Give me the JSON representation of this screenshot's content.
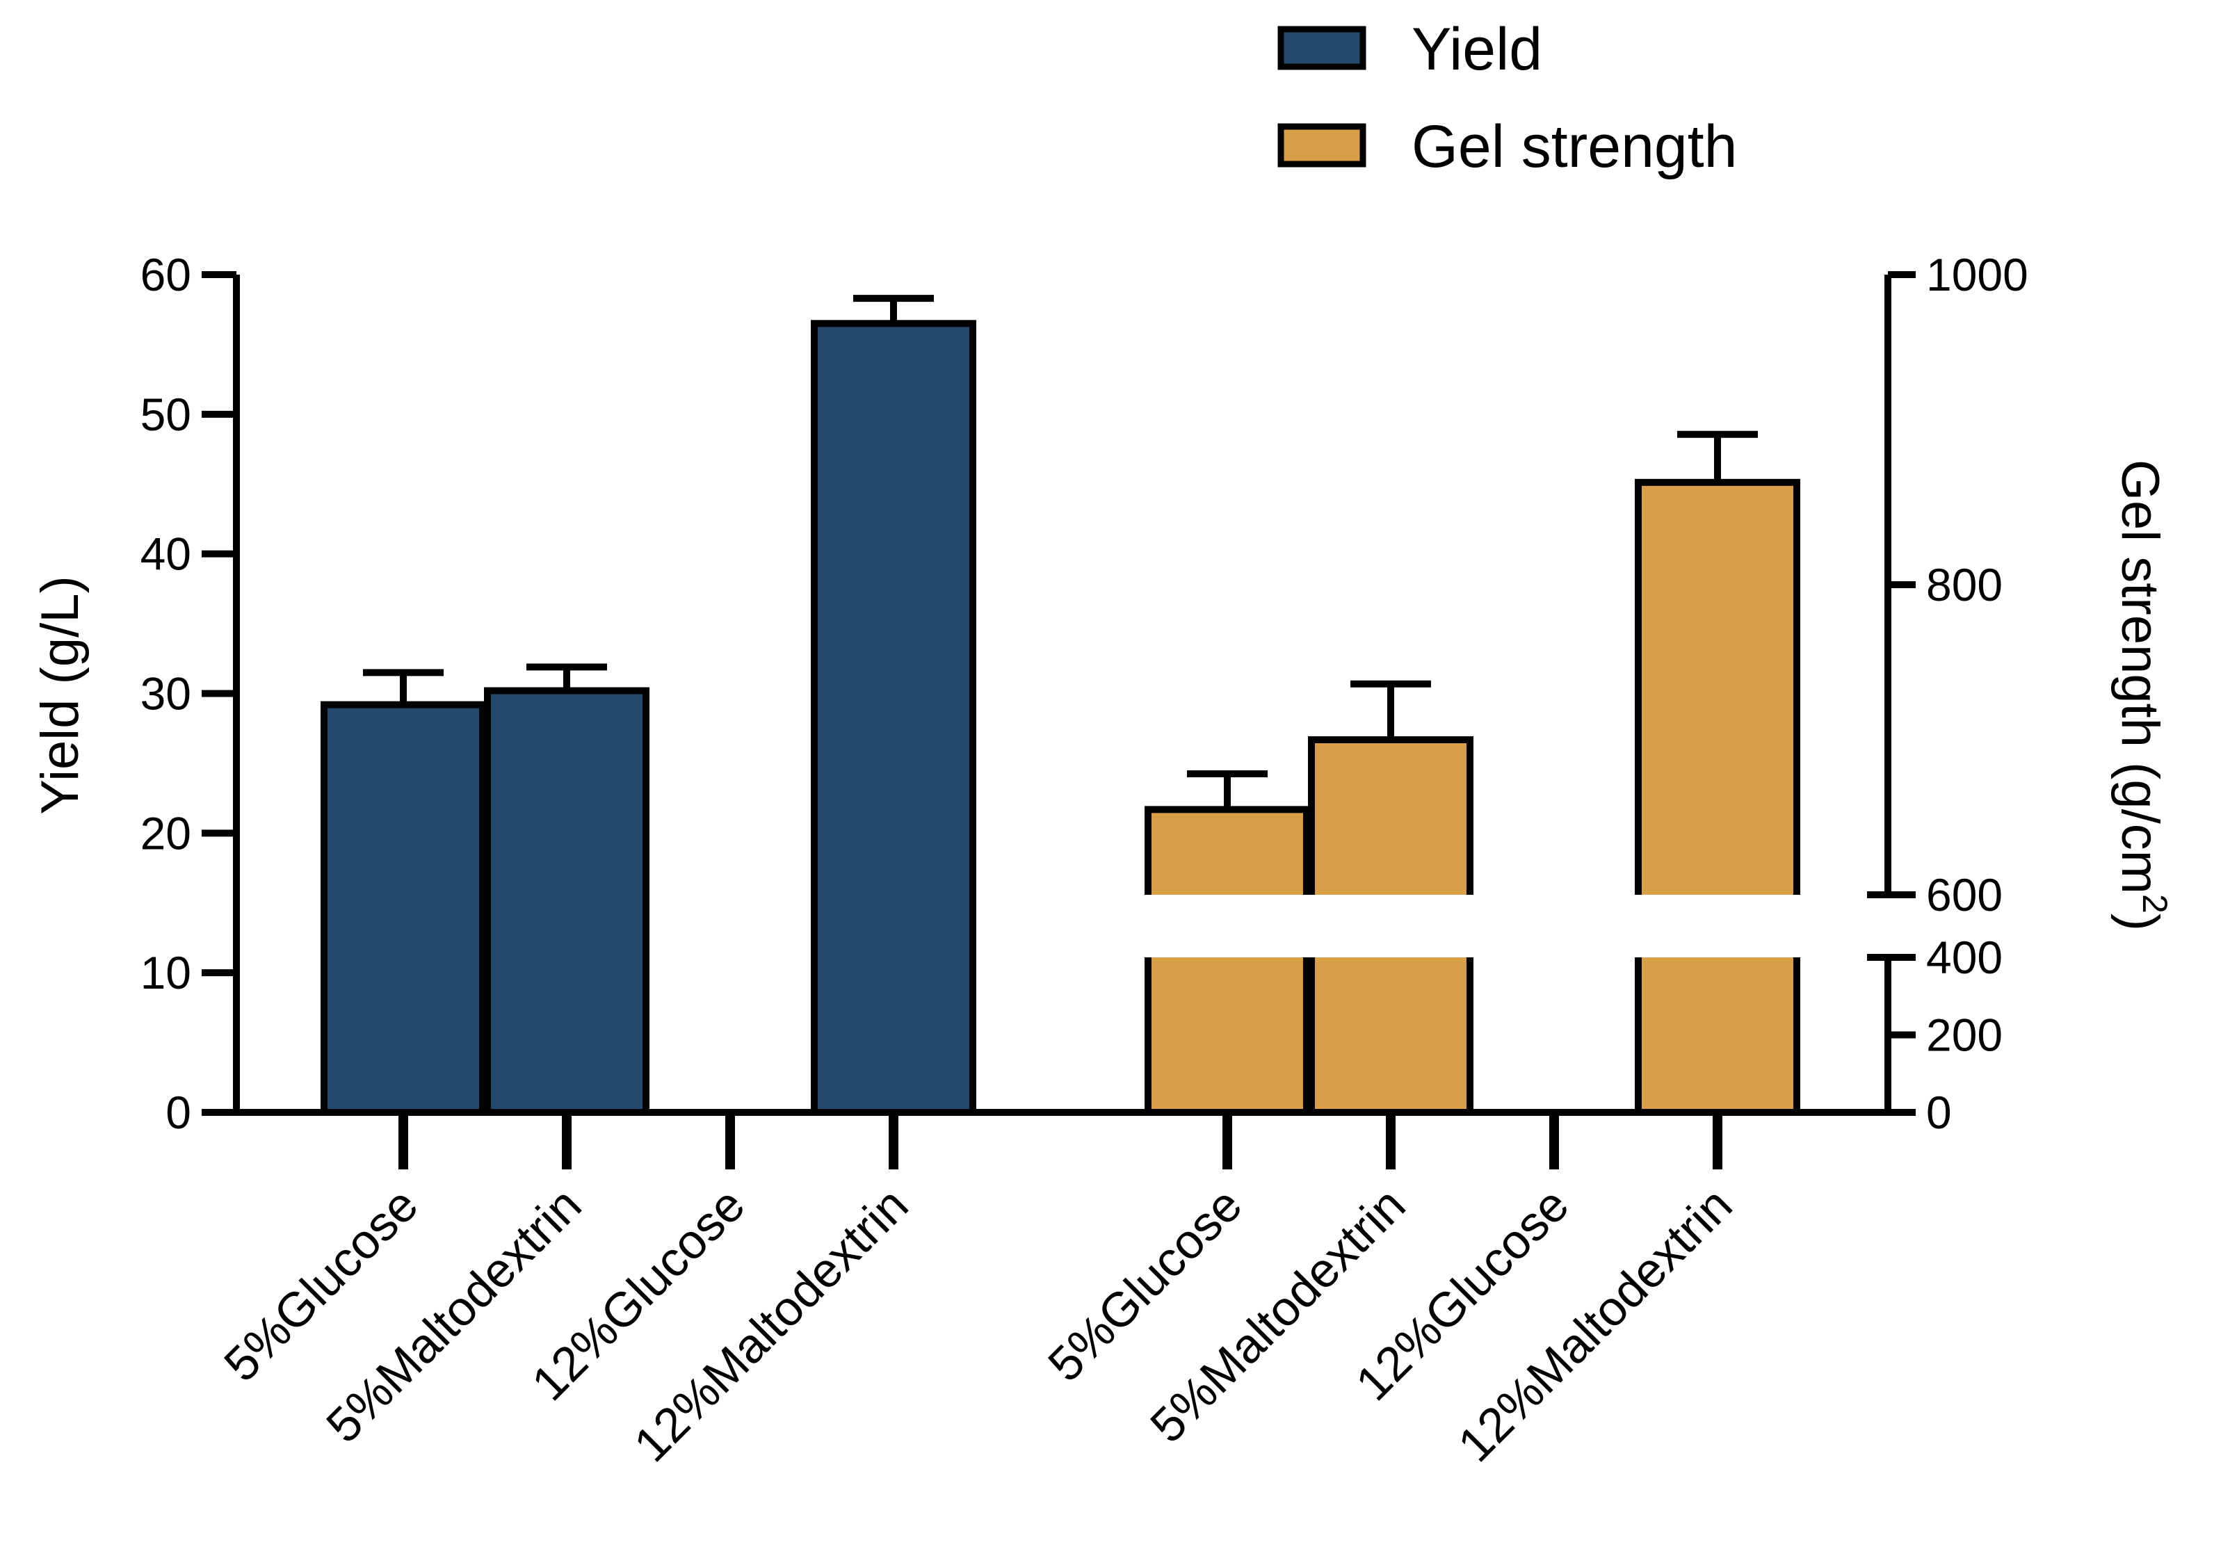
{
  "chart_data": {
    "type": "bar",
    "title": "",
    "legend": {
      "placement": "top-right",
      "entries": [
        {
          "name": "Yield",
          "color": "#254A6B"
        },
        {
          "name": "Gel strength",
          "color": "#D89E48"
        }
      ]
    },
    "left_axis": {
      "label": "Yield (g/L)",
      "ylim": [
        0,
        60
      ],
      "ticks": [
        "0",
        "10",
        "20",
        "30",
        "40",
        "50",
        "60"
      ]
    },
    "right_axis": {
      "label_main": "Gel strength (g/cm",
      "label_sup": "2",
      "label_end": ")",
      "broken": true,
      "lower_range": [
        0,
        400
      ],
      "upper_range": [
        600,
        1000
      ],
      "lower_ticks": [
        "0",
        "200",
        "400"
      ],
      "upper_ticks": [
        "600",
        "800",
        "1000"
      ]
    },
    "categories": [
      "5%Glucose",
      "5%Maltodextrin",
      "12%Glucose",
      "12%Maltodextrin"
    ],
    "series": [
      {
        "name": "Yield",
        "axis": "left",
        "color": "#254A6B",
        "values": [
          29.2,
          30.2,
          null,
          56.5
        ],
        "errors": [
          2.3,
          1.7,
          null,
          1.8
        ]
      },
      {
        "name": "Gel strength",
        "axis": "right",
        "color": "#D89E48",
        "values": [
          655,
          700,
          null,
          866
        ],
        "errors": [
          23,
          36,
          null,
          31
        ]
      }
    ]
  }
}
